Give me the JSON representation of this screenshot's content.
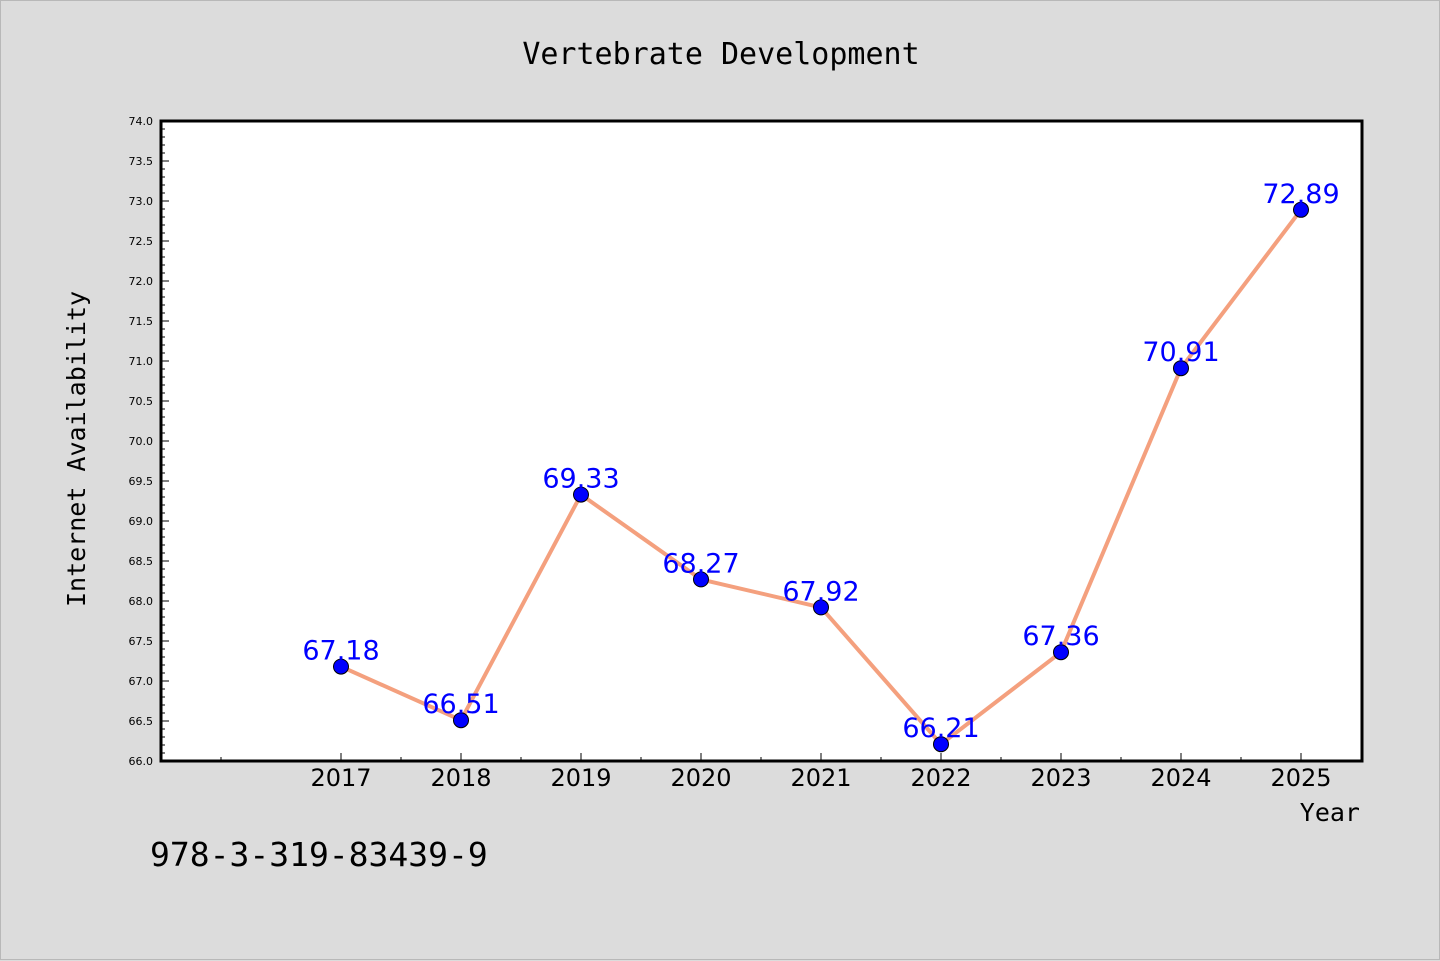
{
  "chart_data": {
    "type": "line",
    "title": "Vertebrate Development",
    "xlabel": "Year",
    "ylabel": "Internet Availability",
    "x": [
      "2017",
      "2018",
      "2019",
      "2020",
      "2021",
      "2022",
      "2023",
      "2024",
      "2025"
    ],
    "values": [
      67.18,
      66.51,
      69.33,
      68.27,
      67.92,
      66.21,
      67.36,
      70.91,
      72.89
    ],
    "data_labels": [
      "67.18",
      "66.51",
      "69.33",
      "68.27",
      "67.92",
      "66.21",
      "67.36",
      "70.91",
      "72.89"
    ],
    "ylim": [
      66.0,
      74.0
    ],
    "y_ticks": [
      "66.0",
      "66.5",
      "67.0",
      "67.5",
      "68.0",
      "68.5",
      "69.0",
      "69.5",
      "70.0",
      "70.5",
      "71.0",
      "71.5",
      "72.0",
      "72.5",
      "73.0",
      "73.5",
      "74.0"
    ],
    "grid": false,
    "legend": "none",
    "line_color": "#f4a07e",
    "marker_color": "#0000ff",
    "label_color": "#0000ff"
  },
  "footer": {
    "isbn": "978-3-319-83439-9"
  }
}
